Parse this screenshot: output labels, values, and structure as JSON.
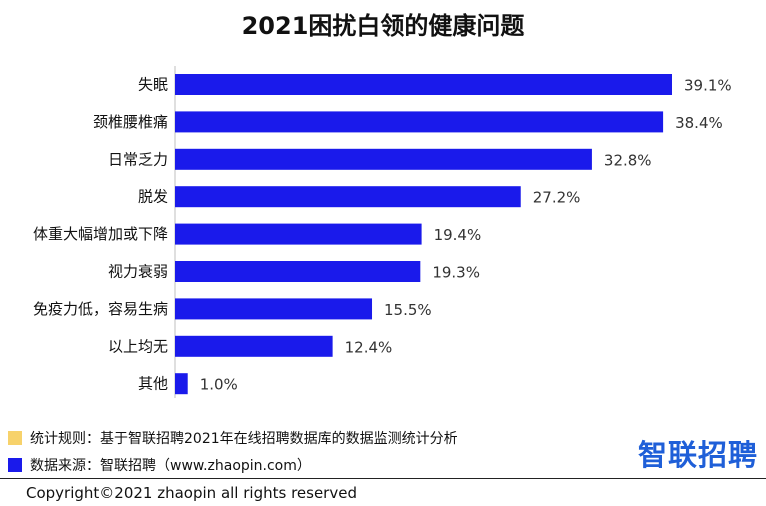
{
  "title": "2021困扰白领的健康问题",
  "colors": {
    "bar": "#1a1aeb",
    "rule_swatch": "#f7d26b",
    "source_swatch": "#1a1aeb",
    "brand": "#1f5fd8",
    "axis": "#bfbfbf"
  },
  "chart_data": {
    "type": "bar",
    "orientation": "horizontal",
    "title": "2021困扰白领的健康问题",
    "categories": [
      "失眠",
      "颈椎腰椎痛",
      "日常乏力",
      "脱发",
      "体重大幅增加或下降",
      "视力衰弱",
      "免疫力低，容易生病",
      "以上均无",
      "其他"
    ],
    "values": [
      39.1,
      38.4,
      32.8,
      27.2,
      19.4,
      19.3,
      15.5,
      12.4,
      1.0
    ],
    "value_labels": [
      "39.1%",
      "38.4%",
      "32.8%",
      "27.2%",
      "19.4%",
      "19.3%",
      "15.5%",
      "12.4%",
      "1.0%"
    ],
    "unit": "%",
    "xlim": [
      0,
      40
    ],
    "grid": false,
    "legend": "none"
  },
  "footer": {
    "rule_text": "统计规则：基于智联招聘2021年在线招聘数据库的数据监测统计分析",
    "source_text": "数据来源：智联招聘（www.zhaopin.com）",
    "brand": "智联招聘",
    "copyright": "Copyright©2021 zhaopin all rights reserved"
  }
}
